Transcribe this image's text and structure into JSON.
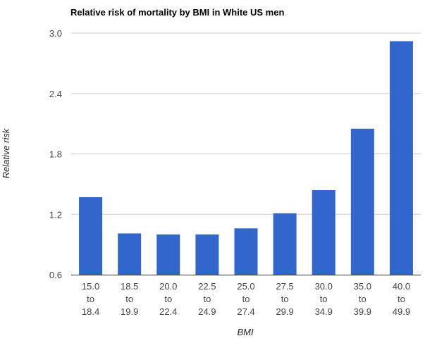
{
  "chart_data": {
    "type": "bar",
    "title": "Relative risk of mortality by BMI in White US men",
    "xlabel": "BMI",
    "ylabel": "Relative risk",
    "categories": [
      [
        "15.0",
        "to",
        "18.4"
      ],
      [
        "18.5",
        "to",
        "19.9"
      ],
      [
        "20.0",
        "to",
        "22.4"
      ],
      [
        "22.5",
        "to",
        "24.9"
      ],
      [
        "25.0",
        "to",
        "27.4"
      ],
      [
        "27.5",
        "to",
        "29.9"
      ],
      [
        "30.0",
        "to",
        "34.9"
      ],
      [
        "35.0",
        "to",
        "39.9"
      ],
      [
        "40.0",
        "to",
        "49.9"
      ]
    ],
    "values": [
      1.37,
      1.01,
      1.0,
      1.0,
      1.06,
      1.21,
      1.44,
      2.05,
      2.92
    ],
    "ylim": [
      0.6,
      3.0
    ],
    "yticks": [
      "0.6",
      "1.2",
      "1.8",
      "2.4",
      "3.0"
    ],
    "grid": true,
    "legend": "none",
    "bar_color": "#3366cc"
  }
}
